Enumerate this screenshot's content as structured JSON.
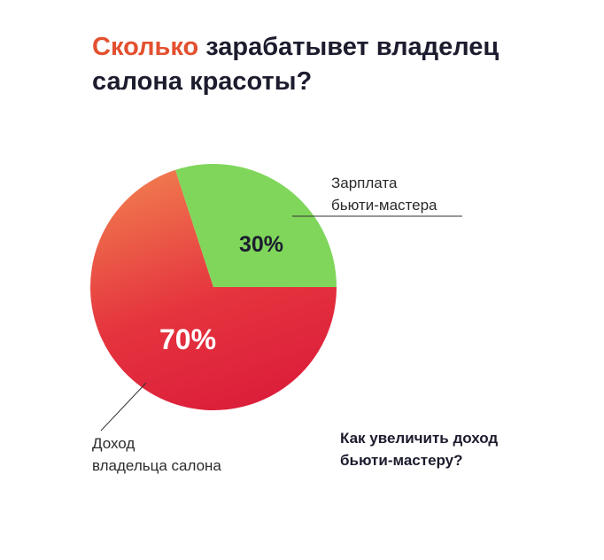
{
  "header": {
    "title_accent": "Сколько",
    "title_rest": " зарабатывет владелец салона красоты?"
  },
  "chart_data": {
    "type": "pie",
    "slices": [
      {
        "label": "Зарплата бьюти-мастера",
        "label_lines": [
          "Зарплата",
          "бьюти-мастера"
        ],
        "value": 30,
        "value_label": "30%",
        "color": "#7fd65b"
      },
      {
        "label": "Доход владельца салона",
        "label_lines": [
          "Доход",
          "владельца салона"
        ],
        "value": 70,
        "value_label": "70%",
        "color": "#e32a3d"
      }
    ]
  },
  "footer": {
    "cta_line1": "Как увеличить доход",
    "cta_line2": "бьюти-мастеру?"
  }
}
